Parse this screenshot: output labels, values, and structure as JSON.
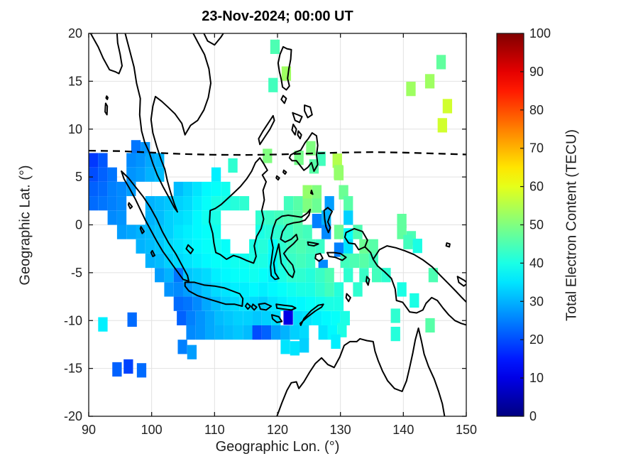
{
  "title": "23-Nov-2024; 00:00 UT",
  "colors": {
    "background": "#ffffff",
    "grid": "#e2e2e2",
    "axis": "#151515",
    "coastline": "#000000",
    "tick_label": "#1f1f1f",
    "dashed_line": "#000000"
  },
  "chart_data": {
    "type": "heatmap",
    "title": "23-Nov-2024; 00:00 UT",
    "xlabel": "Geographic Lon. (°)",
    "ylabel": "Geographic Lat. (°)",
    "xlim": [
      90,
      150
    ],
    "ylim": [
      -20,
      20
    ],
    "xticks": [
      90,
      100,
      110,
      120,
      130,
      140,
      150
    ],
    "yticks": [
      20,
      15,
      10,
      5,
      0,
      -5,
      -10,
      -15,
      -20
    ],
    "grid": true,
    "cell_size_deg": [
      1.5,
      1.5
    ],
    "colorbar": {
      "label": "Total Electron Content (TECU)",
      "min": 0,
      "max": 100,
      "ticks": [
        0,
        10,
        20,
        30,
        40,
        50,
        60,
        70,
        80,
        90,
        100
      ],
      "colormap": "jet"
    },
    "annotations": {
      "magnetic_equator_dashed_line": [
        [
          90,
          7.75
        ],
        [
          95,
          7.7
        ],
        [
          100,
          7.55
        ],
        [
          105,
          7.4
        ],
        [
          110,
          7.32
        ],
        [
          115,
          7.3
        ],
        [
          120,
          7.35
        ],
        [
          125,
          7.45
        ],
        [
          130,
          7.55
        ],
        [
          135,
          7.6
        ],
        [
          140,
          7.55
        ],
        [
          145,
          7.45
        ],
        [
          150,
          7.35
        ]
      ]
    },
    "cells": [
      [
        119.6,
        18.6,
        45
      ],
      [
        121.4,
        15.8,
        53
      ],
      [
        119.3,
        14.6,
        44
      ],
      [
        118.4,
        7.2,
        50
      ],
      [
        123.4,
        7.0,
        49
      ],
      [
        125.3,
        8.0,
        50
      ],
      [
        126.9,
        6.9,
        44
      ],
      [
        129.5,
        6.7,
        55
      ],
      [
        129.7,
        5.5,
        52
      ],
      [
        112.9,
        6.2,
        42
      ],
      [
        125.8,
        6.1,
        46
      ],
      [
        146.0,
        17.0,
        47
      ],
      [
        144.2,
        15.0,
        53
      ],
      [
        141.2,
        14.2,
        53
      ],
      [
        147.0,
        12.4,
        58
      ],
      [
        146.2,
        10.4,
        58
      ],
      [
        97.5,
        8.1,
        24
      ],
      [
        99.0,
        7.9,
        27
      ],
      [
        90.75,
        6.75,
        18
      ],
      [
        92.25,
        6.75,
        21
      ],
      [
        96.75,
        6.75,
        26
      ],
      [
        98.25,
        6.75,
        27
      ],
      [
        99.75,
        6.75,
        29
      ],
      [
        101.25,
        6.75,
        30
      ],
      [
        90.75,
        5.25,
        20
      ],
      [
        92.25,
        5.25,
        22
      ],
      [
        93.75,
        5.25,
        24
      ],
      [
        96.75,
        5.25,
        27
      ],
      [
        98.25,
        5.25,
        28
      ],
      [
        99.75,
        5.25,
        30
      ],
      [
        101.25,
        5.25,
        31
      ],
      [
        110.25,
        5.25,
        36
      ],
      [
        129.75,
        5.4,
        52
      ],
      [
        90.75,
        3.75,
        22
      ],
      [
        92.25,
        3.75,
        23
      ],
      [
        93.75,
        3.75,
        25
      ],
      [
        95.25,
        3.75,
        26
      ],
      [
        96.75,
        3.75,
        28
      ],
      [
        104.25,
        3.75,
        31
      ],
      [
        105.75,
        3.75,
        33
      ],
      [
        107.25,
        3.75,
        35
      ],
      [
        108.75,
        3.75,
        37
      ],
      [
        110.25,
        3.75,
        38
      ],
      [
        111.75,
        3.75,
        39
      ],
      [
        124.75,
        3.4,
        52
      ],
      [
        126.25,
        3.4,
        50
      ],
      [
        130.5,
        3.4,
        48
      ],
      [
        90.75,
        2.25,
        23
      ],
      [
        92.25,
        2.25,
        24
      ],
      [
        93.75,
        2.25,
        25
      ],
      [
        95.25,
        2.25,
        26
      ],
      [
        99.75,
        2.25,
        30
      ],
      [
        101.25,
        2.25,
        31
      ],
      [
        102.75,
        2.25,
        32
      ],
      [
        104.25,
        2.25,
        33
      ],
      [
        105.75,
        2.25,
        34
      ],
      [
        107.25,
        2.25,
        36
      ],
      [
        108.75,
        2.25,
        38
      ],
      [
        110.25,
        2.25,
        40
      ],
      [
        111.75,
        2.25,
        40
      ],
      [
        113.25,
        2.25,
        41
      ],
      [
        114.75,
        2.25,
        42
      ],
      [
        121.75,
        2.25,
        44
      ],
      [
        123.25,
        2.25,
        46
      ],
      [
        124.75,
        2.0,
        50
      ],
      [
        126.25,
        2.0,
        48
      ],
      [
        128.25,
        2.25,
        28
      ],
      [
        131.25,
        2.25,
        46
      ],
      [
        93.75,
        0.75,
        26
      ],
      [
        95.25,
        0.75,
        27
      ],
      [
        99.75,
        0.75,
        30
      ],
      [
        101.25,
        0.75,
        31
      ],
      [
        102.75,
        0.75,
        33
      ],
      [
        104.25,
        0.75,
        34
      ],
      [
        105.75,
        0.75,
        35
      ],
      [
        107.25,
        0.75,
        37
      ],
      [
        108.75,
        0.75,
        39
      ],
      [
        110.25,
        0.75,
        40
      ],
      [
        117.25,
        0.75,
        42
      ],
      [
        118.75,
        0.75,
        43
      ],
      [
        120.25,
        0.75,
        44
      ],
      [
        121.75,
        0.75,
        45
      ],
      [
        123.25,
        0.75,
        46
      ],
      [
        126.25,
        0.4,
        25
      ],
      [
        127.75,
        0.75,
        30
      ],
      [
        131.25,
        0.75,
        33
      ],
      [
        139.75,
        0.4,
        47
      ],
      [
        95.25,
        -0.75,
        28
      ],
      [
        96.75,
        -0.75,
        29
      ],
      [
        98.25,
        -0.75,
        30
      ],
      [
        99.75,
        -0.75,
        31
      ],
      [
        101.25,
        -0.75,
        32
      ],
      [
        102.75,
        -0.75,
        33
      ],
      [
        104.25,
        -0.75,
        35
      ],
      [
        105.75,
        -0.75,
        36
      ],
      [
        107.25,
        -0.75,
        37
      ],
      [
        108.75,
        -0.75,
        38
      ],
      [
        110.25,
        -0.75,
        39
      ],
      [
        117.25,
        -0.75,
        40
      ],
      [
        118.75,
        -0.75,
        41
      ],
      [
        120.25,
        -0.75,
        42
      ],
      [
        121.75,
        -0.75,
        43
      ],
      [
        123.25,
        -0.75,
        45
      ],
      [
        124.75,
        -0.75,
        44
      ],
      [
        127.75,
        -0.75,
        26
      ],
      [
        129.75,
        -0.75,
        48
      ],
      [
        131.25,
        -1.1,
        38
      ],
      [
        132.75,
        -0.75,
        45
      ],
      [
        139.75,
        -0.75,
        47
      ],
      [
        141.25,
        -1.4,
        45
      ],
      [
        98.25,
        -2.25,
        30
      ],
      [
        99.75,
        -2.25,
        31
      ],
      [
        101.25,
        -2.25,
        32
      ],
      [
        102.75,
        -2.25,
        34
      ],
      [
        104.25,
        -2.25,
        35
      ],
      [
        105.75,
        -2.25,
        36
      ],
      [
        107.25,
        -2.25,
        37
      ],
      [
        108.75,
        -2.25,
        38
      ],
      [
        110.25,
        -2.25,
        39
      ],
      [
        111.75,
        -2.25,
        38
      ],
      [
        116.25,
        -2.25,
        40
      ],
      [
        117.75,
        -2.25,
        41
      ],
      [
        119.25,
        -2.25,
        38
      ],
      [
        120.75,
        -2.25,
        42
      ],
      [
        122.25,
        -2.25,
        44
      ],
      [
        123.75,
        -2.25,
        45
      ],
      [
        125.25,
        -2.25,
        44
      ],
      [
        126.75,
        -2.25,
        43
      ],
      [
        129.75,
        -2.6,
        25
      ],
      [
        131.25,
        -2.25,
        35
      ],
      [
        133.75,
        -2.25,
        48
      ],
      [
        135.25,
        -2.25,
        46
      ],
      [
        140.75,
        -1.8,
        44
      ],
      [
        142.25,
        -2.2,
        40
      ],
      [
        99.75,
        -3.75,
        30
      ],
      [
        101.25,
        -3.75,
        31
      ],
      [
        102.75,
        -3.75,
        33
      ],
      [
        104.25,
        -3.75,
        34
      ],
      [
        105.75,
        -3.75,
        35
      ],
      [
        107.25,
        -3.75,
        36
      ],
      [
        108.75,
        -3.75,
        37
      ],
      [
        110.25,
        -3.75,
        38
      ],
      [
        111.75,
        -3.75,
        38
      ],
      [
        113.25,
        -3.75,
        39
      ],
      [
        114.75,
        -3.75,
        39
      ],
      [
        116.25,
        -3.75,
        40
      ],
      [
        117.75,
        -3.75,
        40
      ],
      [
        119.25,
        -3.75,
        37
      ],
      [
        120.75,
        -3.75,
        41
      ],
      [
        122.25,
        -3.75,
        43
      ],
      [
        123.75,
        -3.75,
        44
      ],
      [
        125.25,
        -3.75,
        43
      ],
      [
        127.25,
        -4.4,
        26
      ],
      [
        130.75,
        -3.75,
        44
      ],
      [
        132.25,
        -3.75,
        45
      ],
      [
        133.75,
        -3.75,
        46
      ],
      [
        135.25,
        -3.75,
        44
      ],
      [
        101.25,
        -5.25,
        28
      ],
      [
        102.75,
        -5.25,
        30
      ],
      [
        104.25,
        -5.25,
        24
      ],
      [
        105.75,
        -5.25,
        32
      ],
      [
        107.25,
        -5.25,
        33
      ],
      [
        108.75,
        -5.25,
        34
      ],
      [
        110.25,
        -5.25,
        36
      ],
      [
        111.75,
        -5.25,
        37
      ],
      [
        113.25,
        -5.25,
        38
      ],
      [
        114.75,
        -5.25,
        38
      ],
      [
        116.25,
        -5.25,
        39
      ],
      [
        117.75,
        -5.25,
        38
      ],
      [
        119.25,
        -5.25,
        36
      ],
      [
        120.75,
        -5.25,
        40
      ],
      [
        122.25,
        -5.25,
        42
      ],
      [
        123.75,
        -5.25,
        42
      ],
      [
        125.25,
        -5.25,
        41
      ],
      [
        126.75,
        -5.25,
        43
      ],
      [
        128.25,
        -5.25,
        45
      ],
      [
        131.25,
        -5.25,
        42
      ],
      [
        133.75,
        -5.25,
        43
      ],
      [
        135.75,
        -5.25,
        44
      ],
      [
        137.25,
        -5.25,
        42
      ],
      [
        144.75,
        -5.25,
        45
      ],
      [
        102.75,
        -6.75,
        27
      ],
      [
        104.25,
        -6.75,
        26
      ],
      [
        105.75,
        -6.75,
        28
      ],
      [
        107.25,
        -6.75,
        30
      ],
      [
        108.75,
        -6.75,
        32
      ],
      [
        110.25,
        -6.75,
        34
      ],
      [
        111.75,
        -6.75,
        35
      ],
      [
        113.25,
        -6.75,
        36
      ],
      [
        114.75,
        -6.75,
        36
      ],
      [
        116.25,
        -6.75,
        37
      ],
      [
        117.75,
        -6.75,
        36
      ],
      [
        119.25,
        -6.75,
        37
      ],
      [
        120.75,
        -6.75,
        38
      ],
      [
        122.25,
        -6.75,
        39
      ],
      [
        123.75,
        -6.75,
        40
      ],
      [
        125.25,
        -6.75,
        40
      ],
      [
        126.75,
        -6.75,
        42
      ],
      [
        128.25,
        -6.75,
        44
      ],
      [
        129.75,
        -6.75,
        41
      ],
      [
        132.75,
        -6.75,
        42
      ],
      [
        139.75,
        -6.75,
        40
      ],
      [
        141.75,
        -7.9,
        40
      ],
      [
        104.25,
        -8.25,
        23
      ],
      [
        105.75,
        -8.25,
        24
      ],
      [
        107.25,
        -8.25,
        26
      ],
      [
        108.75,
        -8.25,
        29
      ],
      [
        110.25,
        -8.25,
        31
      ],
      [
        111.75,
        -8.25,
        33
      ],
      [
        113.25,
        -8.25,
        34
      ],
      [
        114.75,
        -8.25,
        35
      ],
      [
        116.25,
        -8.25,
        34
      ],
      [
        117.75,
        -8.25,
        33
      ],
      [
        119.25,
        -8.25,
        35
      ],
      [
        120.75,
        -8.25,
        36
      ],
      [
        122.25,
        -8.25,
        37
      ],
      [
        123.75,
        -8.25,
        37
      ],
      [
        125.25,
        -8.25,
        38
      ],
      [
        126.75,
        -8.25,
        39
      ],
      [
        128.25,
        -8.25,
        40
      ],
      [
        129.75,
        -8.25,
        40
      ],
      [
        138.75,
        -9.5,
        42
      ],
      [
        92.25,
        -10.4,
        36
      ],
      [
        96.9,
        -9.9,
        23
      ],
      [
        104.75,
        -9.75,
        22
      ],
      [
        106.25,
        -9.75,
        25
      ],
      [
        107.75,
        -9.75,
        27
      ],
      [
        109.25,
        -9.75,
        29
      ],
      [
        110.75,
        -9.75,
        31
      ],
      [
        112.25,
        -9.75,
        32
      ],
      [
        113.75,
        -9.75,
        33
      ],
      [
        115.25,
        -9.75,
        33
      ],
      [
        116.75,
        -9.75,
        32
      ],
      [
        118.25,
        -9.75,
        33
      ],
      [
        119.75,
        -9.75,
        34
      ],
      [
        121.7,
        -9.7,
        10
      ],
      [
        123.25,
        -9.75,
        34
      ],
      [
        124.75,
        -9.75,
        35
      ],
      [
        126.25,
        -9.75,
        36
      ],
      [
        127.75,
        -9.75,
        37
      ],
      [
        129.25,
        -9.75,
        38
      ],
      [
        130.75,
        -9.75,
        40
      ],
      [
        106.25,
        -11.25,
        26
      ],
      [
        107.75,
        -11.25,
        27
      ],
      [
        109.25,
        -11.25,
        29
      ],
      [
        110.75,
        -11.25,
        30
      ],
      [
        112.25,
        -11.25,
        31
      ],
      [
        113.75,
        -11.25,
        32
      ],
      [
        115.25,
        -11.25,
        31
      ],
      [
        116.75,
        -11.25,
        20
      ],
      [
        118.25,
        -11.25,
        22
      ],
      [
        119.75,
        -11.25,
        28
      ],
      [
        121.25,
        -11.25,
        30
      ],
      [
        122.75,
        -11.25,
        33
      ],
      [
        124.25,
        -11.25,
        34
      ],
      [
        127.25,
        -11.25,
        35
      ],
      [
        128.75,
        -11.25,
        37
      ],
      [
        130.25,
        -11.0,
        40
      ],
      [
        138.75,
        -11.4,
        41
      ],
      [
        144.25,
        -10.5,
        46
      ],
      [
        104.9,
        -12.75,
        25
      ],
      [
        106.4,
        -13.3,
        28
      ],
      [
        121.25,
        -12.75,
        35
      ],
      [
        122.75,
        -12.9,
        35
      ],
      [
        124.25,
        -12.6,
        33
      ],
      [
        129.25,
        -12.2,
        36
      ],
      [
        94.5,
        -15.1,
        22
      ],
      [
        96.3,
        -14.8,
        19
      ],
      [
        98.4,
        -15.2,
        23
      ]
    ]
  }
}
